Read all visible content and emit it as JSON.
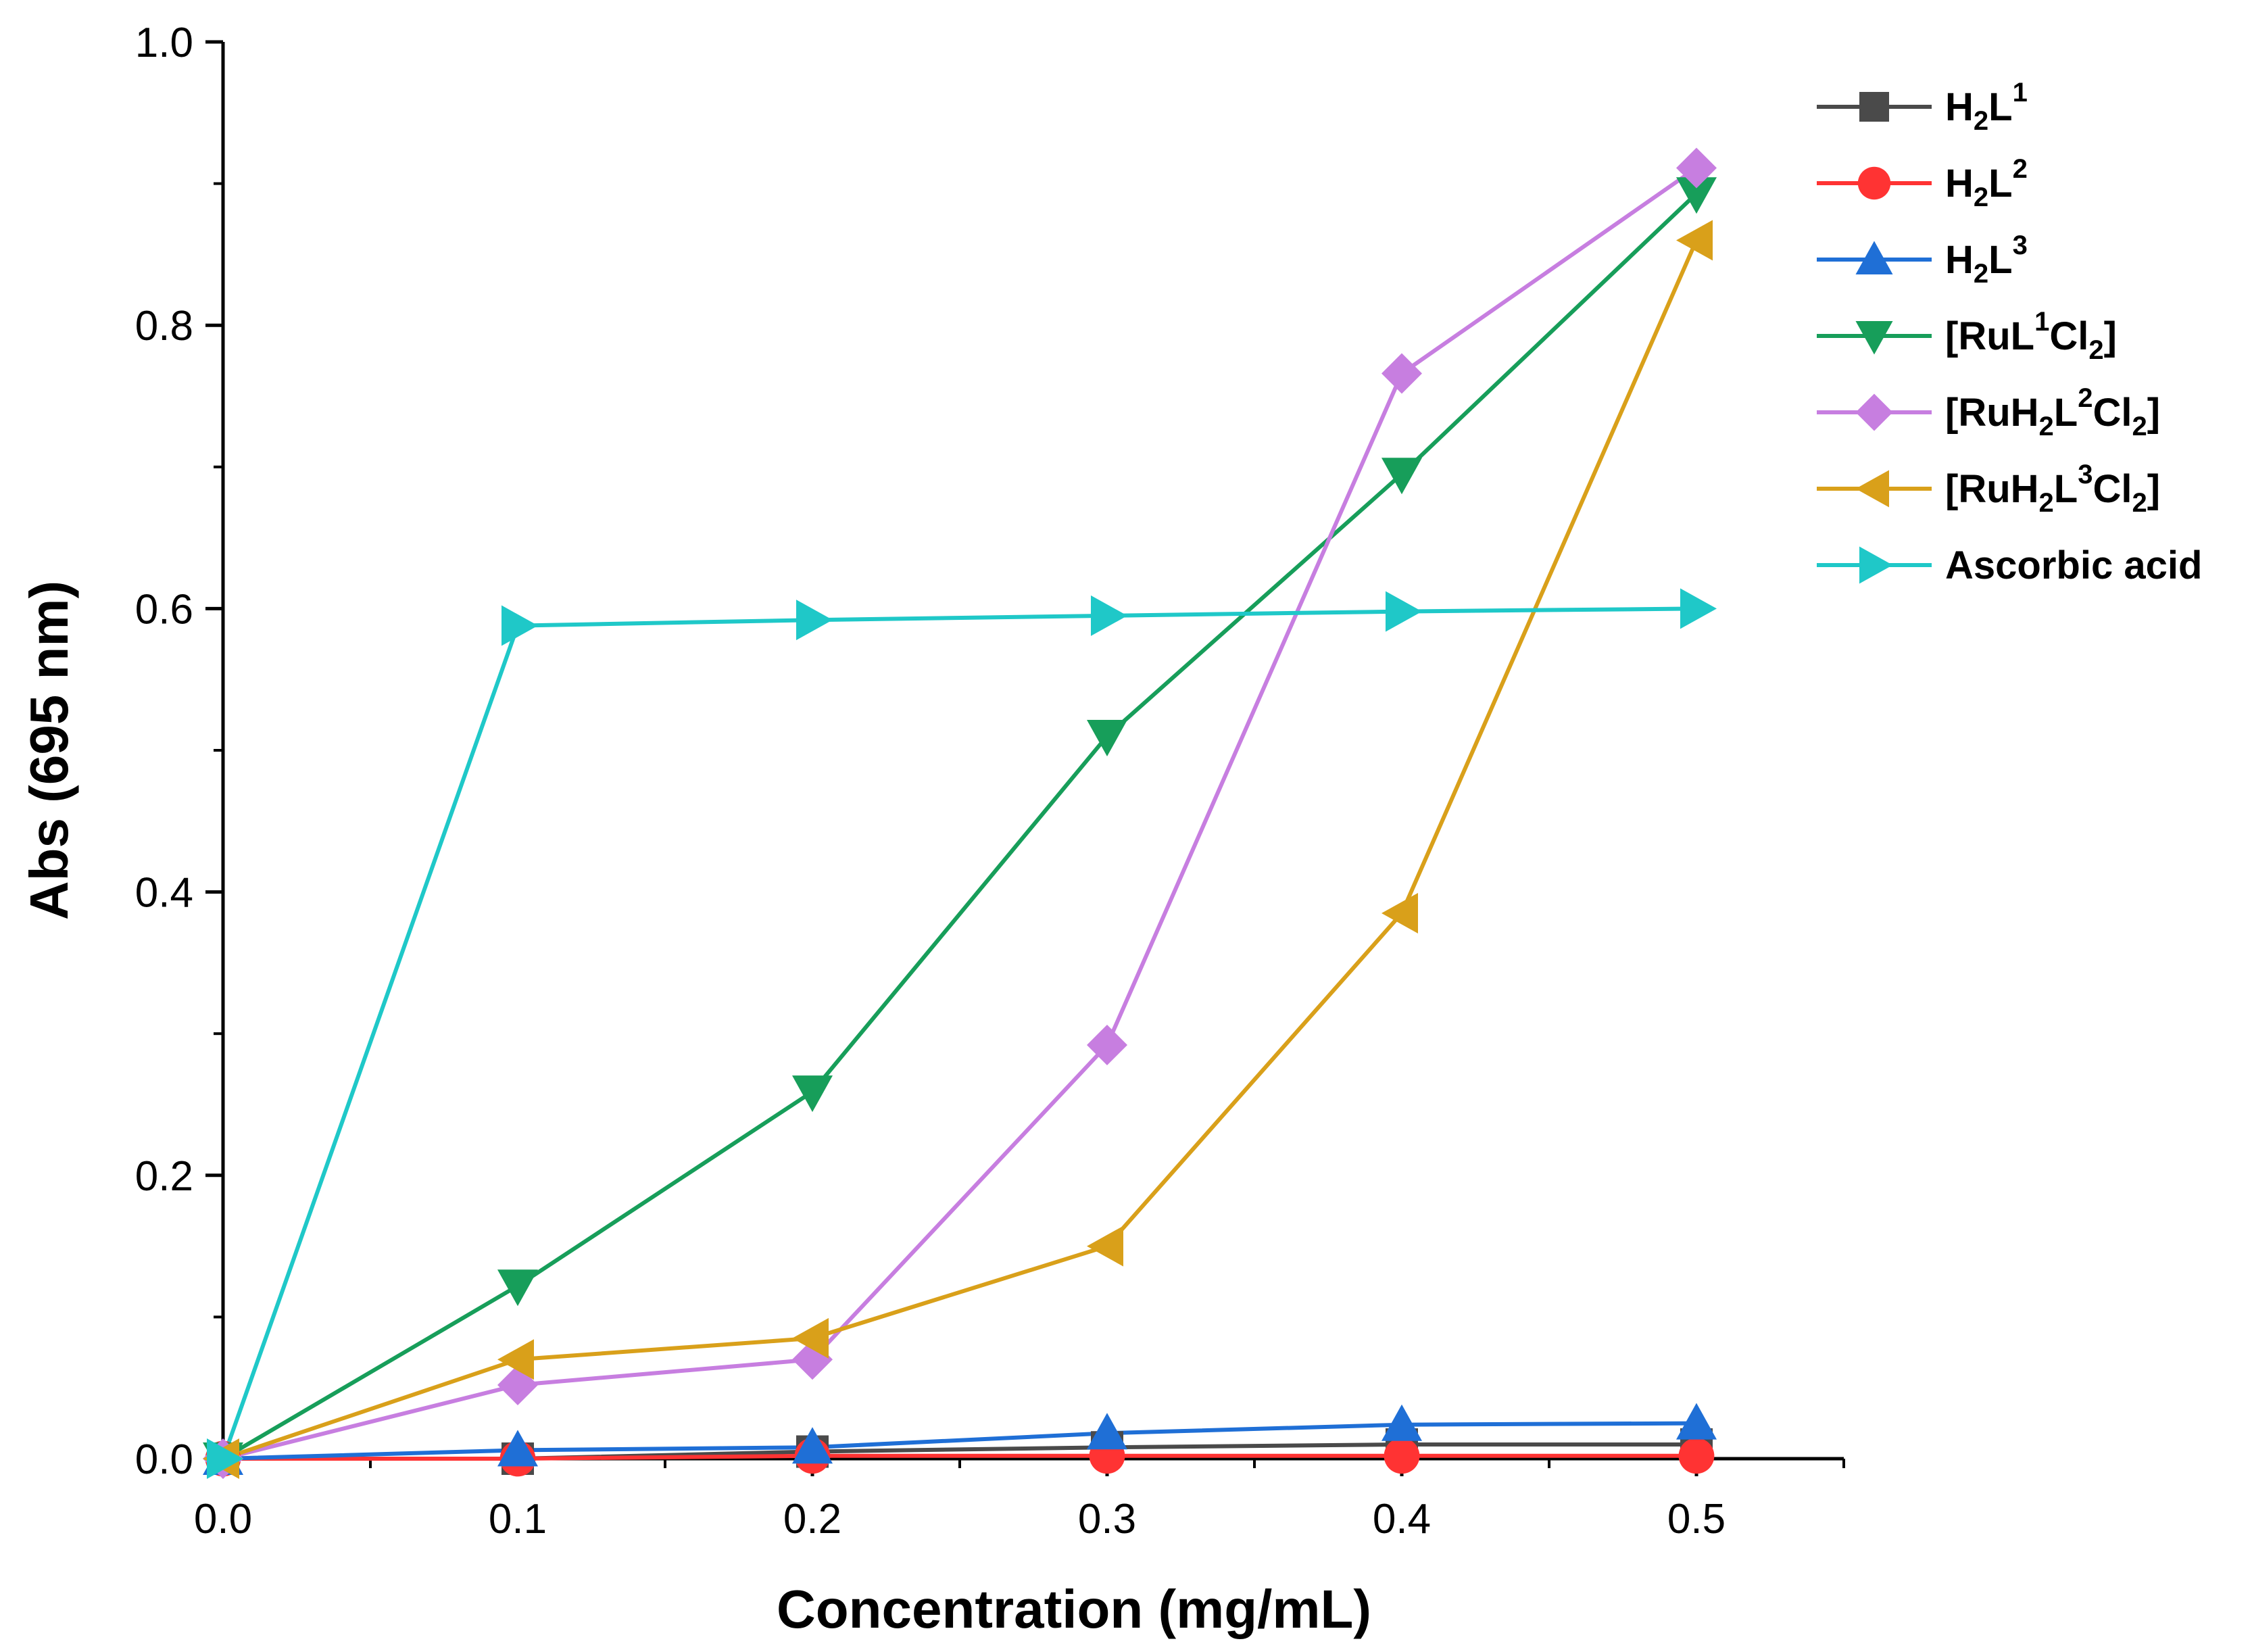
{
  "chart_data": {
    "type": "line",
    "title": "",
    "xlabel": "Concentration (mg/mL)",
    "ylabel": "Abs (695 nm)",
    "xlim": [
      0,
      0.55
    ],
    "ylim": [
      0,
      1.0
    ],
    "x_ticks": [
      0.0,
      0.1,
      0.2,
      0.3,
      0.4,
      0.5
    ],
    "x_tick_labels": [
      "0.0",
      "0.1",
      "0.2",
      "0.3",
      "0.4",
      "0.5"
    ],
    "y_ticks": [
      0.0,
      0.2,
      0.4,
      0.6,
      0.8,
      1.0
    ],
    "y_tick_labels": [
      "0.0",
      "0.2",
      "0.4",
      "0.6",
      "0.8",
      "1.0"
    ],
    "grid": false,
    "legend_position": "top-right",
    "x": [
      0.0,
      0.1,
      0.2,
      0.3,
      0.4,
      0.5
    ],
    "series": [
      {
        "name": "H2L1",
        "legend": {
          "pre": "H",
          "s1": "2",
          "m": "L",
          "s2": "1",
          "post": ""
        },
        "color": "#4a4a4a",
        "marker": "square",
        "values": [
          0.0,
          0.0,
          0.005,
          0.008,
          0.01,
          0.01
        ]
      },
      {
        "name": "H2L2",
        "legend": {
          "pre": "H",
          "s1": "2",
          "m": "L",
          "s2": "2",
          "post": ""
        },
        "color": "#ff3333",
        "marker": "circle",
        "values": [
          0.0,
          0.0,
          0.002,
          0.002,
          0.002,
          0.002
        ]
      },
      {
        "name": "H2L3",
        "legend": {
          "pre": "H",
          "s1": "2",
          "m": "L",
          "s2": "3",
          "post": ""
        },
        "color": "#1f6fd6",
        "marker": "triangle-up",
        "values": [
          0.0,
          0.006,
          0.008,
          0.018,
          0.024,
          0.025
        ]
      },
      {
        "name": "[RuL1Cl2]",
        "legend": {
          "pre": "[RuL",
          "s1": "1",
          "m": "Cl",
          "s2": "2",
          "post": "]"
        },
        "color": "#179e5a",
        "marker": "triangle-down",
        "values": [
          0.0,
          0.122,
          0.259,
          0.51,
          0.695,
          0.893
        ]
      },
      {
        "name": "[RuH2L2Cl2]",
        "legend": {
          "pre": "[RuH",
          "s1": "2",
          "m": "L",
          "s2": "2",
          "m2": "Cl",
          "s3": "2",
          "post": "]"
        },
        "color": "#c77ee0",
        "marker": "diamond",
        "values": [
          0.0,
          0.052,
          0.07,
          0.292,
          0.766,
          0.911
        ]
      },
      {
        "name": "[RuH2L3Cl2]",
        "legend": {
          "pre": "[RuH",
          "s1": "2",
          "m": "L",
          "s2": "3",
          "m2": "Cl",
          "s3": "2",
          "post": "]"
        },
        "color": "#d9a01a",
        "marker": "triangle-left",
        "values": [
          0.0,
          0.07,
          0.085,
          0.15,
          0.385,
          0.86
        ]
      },
      {
        "name": "Ascorbic acid",
        "legend": {
          "pre": "Ascorbic acid"
        },
        "color": "#1fc8c8",
        "marker": "triangle-right",
        "values": [
          0.0,
          0.588,
          0.592,
          0.595,
          0.598,
          0.6
        ]
      }
    ]
  }
}
